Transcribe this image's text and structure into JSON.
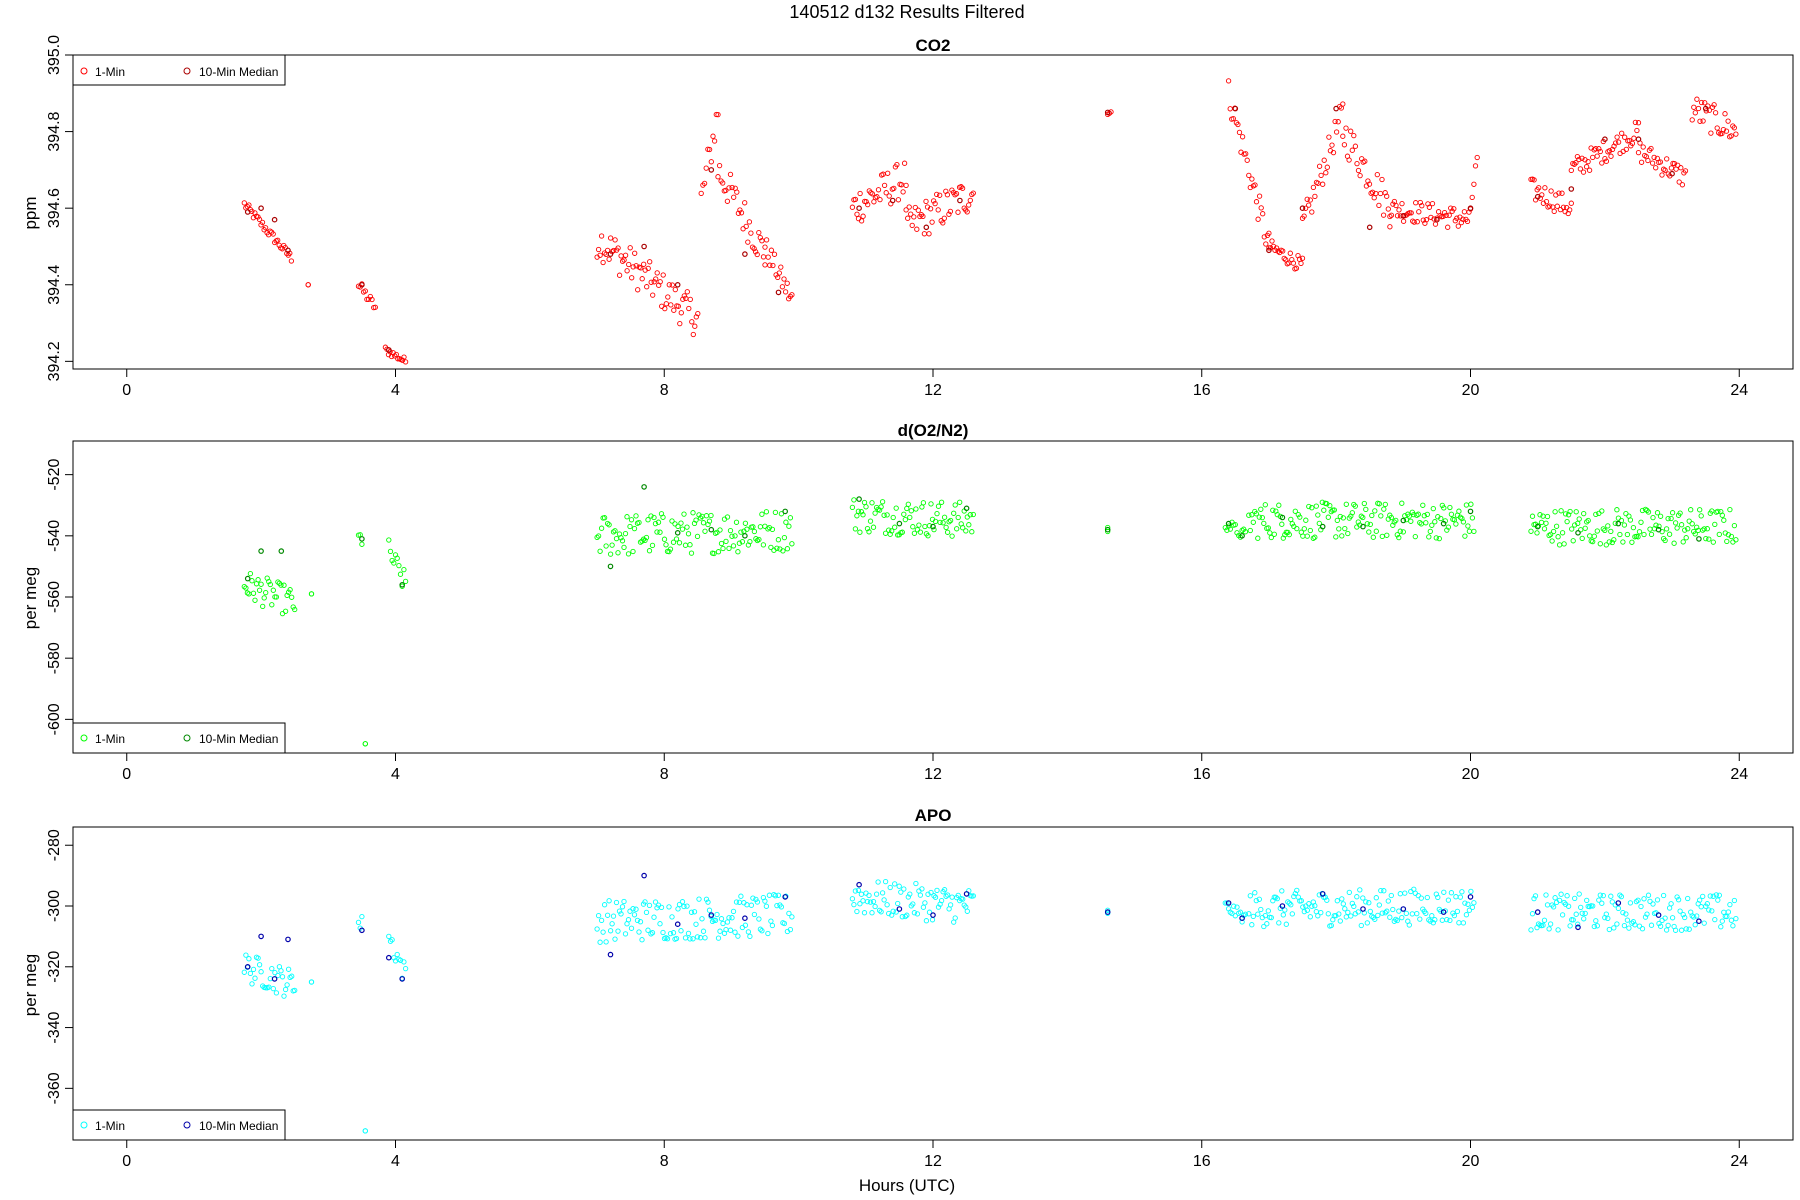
{
  "figure": {
    "title": "140512   d132   Results Filtered",
    "xlabel": "Hours (UTC)"
  },
  "chart_data": [
    {
      "type": "scatter",
      "title": "CO2",
      "xlabel": "Hours (UTC)",
      "ylabel": "ppm",
      "xlim": [
        -0.8,
        24.8
      ],
      "ylim": [
        394.18,
        395.0
      ],
      "xticks": [
        0,
        4,
        8,
        12,
        16,
        20,
        24
      ],
      "yticks": [
        394.2,
        394.4,
        394.6,
        394.8,
        395.0
      ],
      "ytick_labels": [
        "394.2",
        "394.4",
        "394.6",
        "394.8",
        "395.0"
      ],
      "grid": false,
      "legend": {
        "position": "top-left",
        "entries": [
          "1-Min",
          "10-Min Median"
        ]
      },
      "colors": {
        "one_min": "#ff0000",
        "median": "#aa0000"
      },
      "series": [
        {
          "name": "1-Min",
          "segments": [
            {
              "x": [
                1.75,
                2.45
              ],
              "y": [
                394.61,
                394.47
              ],
              "noise": 0.012
            },
            {
              "x": [
                2.7,
                2.7
              ],
              "y": [
                394.4,
                394.4
              ],
              "noise": 0.0
            },
            {
              "x": [
                3.45,
                3.7
              ],
              "y": [
                394.4,
                394.34
              ],
              "noise": 0.015
            },
            {
              "x": [
                3.85,
                4.15
              ],
              "y": [
                394.23,
                394.2
              ],
              "noise": 0.01
            },
            {
              "x": [
                7.0,
                8.5
              ],
              "y": [
                394.52,
                394.31
              ],
              "noise": 0.05
            },
            {
              "x": [
                8.55,
                8.8
              ],
              "y": [
                394.62,
                394.85
              ],
              "noise": 0.05
            },
            {
              "x": [
                8.8,
                9.5
              ],
              "y": [
                394.7,
                394.48
              ],
              "noise": 0.05
            },
            {
              "x": [
                9.5,
                9.9
              ],
              "y": [
                394.5,
                394.36
              ],
              "noise": 0.03
            },
            {
              "x": [
                10.8,
                11.6
              ],
              "y": [
                394.6,
                394.68
              ],
              "noise": 0.05
            },
            {
              "x": [
                11.6,
                12.6
              ],
              "y": [
                394.55,
                394.64
              ],
              "noise": 0.05
            },
            {
              "x": [
                14.6,
                14.65
              ],
              "y": [
                394.85,
                394.85
              ],
              "noise": 0.006
            },
            {
              "x": [
                16.4,
                17.0
              ],
              "y": [
                394.9,
                394.5
              ],
              "noise": 0.04
            },
            {
              "x": [
                17.0,
                17.5
              ],
              "y": [
                394.5,
                394.45
              ],
              "noise": 0.02
            },
            {
              "x": [
                17.5,
                18.1
              ],
              "y": [
                394.55,
                394.85
              ],
              "noise": 0.04
            },
            {
              "x": [
                18.1,
                18.8
              ],
              "y": [
                394.8,
                394.6
              ],
              "noise": 0.05
            },
            {
              "x": [
                18.8,
                20.0
              ],
              "y": [
                394.6,
                394.57
              ],
              "noise": 0.03
            },
            {
              "x": [
                20.0,
                20.1
              ],
              "y": [
                394.6,
                394.73
              ],
              "noise": 0.02
            },
            {
              "x": [
                20.9,
                21.5
              ],
              "y": [
                394.65,
                394.6
              ],
              "noise": 0.03
            },
            {
              "x": [
                21.5,
                22.5
              ],
              "y": [
                394.7,
                394.8
              ],
              "noise": 0.03
            },
            {
              "x": [
                22.5,
                23.2
              ],
              "y": [
                394.75,
                394.68
              ],
              "noise": 0.03
            },
            {
              "x": [
                23.3,
                23.95
              ],
              "y": [
                394.86,
                394.8
              ],
              "noise": 0.04
            }
          ]
        },
        {
          "name": "10-Min Median",
          "x": [
            1.8,
            2.0,
            2.2,
            2.4,
            3.5,
            3.9,
            7.2,
            7.7,
            8.2,
            8.7,
            9.2,
            9.7,
            10.9,
            11.4,
            11.9,
            12.4,
            14.6,
            16.5,
            17.0,
            17.5,
            18.0,
            18.5,
            19.0,
            19.5,
            20.0,
            21.0,
            21.5,
            22.0,
            22.5,
            23.0,
            23.5
          ],
          "y": [
            394.59,
            394.6,
            394.57,
            394.49,
            394.4,
            394.23,
            394.48,
            394.5,
            394.4,
            394.7,
            394.48,
            394.38,
            394.6,
            394.62,
            394.55,
            394.62,
            394.85,
            394.86,
            394.49,
            394.6,
            394.86,
            394.55,
            394.58,
            394.57,
            394.6,
            394.63,
            394.65,
            394.78,
            394.78,
            394.69,
            394.86
          ]
        }
      ]
    },
    {
      "type": "scatter",
      "title": "d(O2/N2)",
      "xlabel": "Hours (UTC)",
      "ylabel": "per meg",
      "xlim": [
        -0.8,
        24.8
      ],
      "ylim": [
        -611,
        -509
      ],
      "xticks": [
        0,
        4,
        8,
        12,
        16,
        20,
        24
      ],
      "yticks": [
        -600,
        -580,
        -560,
        -540,
        -520
      ],
      "ytick_labels": [
        "-600",
        "-580",
        "-560",
        "-540",
        "-520"
      ],
      "grid": false,
      "legend": {
        "position": "bottom-left",
        "entries": [
          "1-Min",
          "10-Min Median"
        ]
      },
      "colors": {
        "one_min": "#00ff00",
        "median": "#008800"
      },
      "series": [
        {
          "name": "1-Min",
          "segments": [
            {
              "x": [
                1.75,
                2.5
              ],
              "y": [
                -556,
                -562
              ],
              "noise": 5
            },
            {
              "x": [
                2.75,
                2.75
              ],
              "y": [
                -559,
                -559
              ],
              "noise": 0
            },
            {
              "x": [
                3.45,
                3.5
              ],
              "y": [
                -541,
                -541
              ],
              "noise": 3
            },
            {
              "x": [
                3.55,
                3.55
              ],
              "y": [
                -608,
                -608
              ],
              "noise": 0
            },
            {
              "x": [
                3.9,
                4.15
              ],
              "y": [
                -545,
                -556
              ],
              "noise": 4
            },
            {
              "x": [
                7.0,
                9.9
              ],
              "y": [
                -540,
                -538
              ],
              "noise": 7
            },
            {
              "x": [
                10.8,
                12.6
              ],
              "y": [
                -533,
                -535
              ],
              "noise": 6
            },
            {
              "x": [
                14.6,
                14.6
              ],
              "y": [
                -538,
                -538
              ],
              "noise": 1
            },
            {
              "x": [
                16.35,
                16.65
              ],
              "y": [
                -536,
                -540
              ],
              "noise": 2
            },
            {
              "x": [
                16.7,
                20.05
              ],
              "y": [
                -535,
                -535
              ],
              "noise": 6
            },
            {
              "x": [
                20.9,
                23.95
              ],
              "y": [
                -537,
                -537
              ],
              "noise": 6
            }
          ]
        },
        {
          "name": "10-Min Median",
          "x": [
            1.8,
            2.0,
            2.3,
            3.5,
            4.1,
            7.2,
            7.7,
            8.2,
            8.7,
            9.2,
            9.8,
            10.9,
            11.5,
            12.0,
            12.5,
            14.6,
            16.4,
            16.6,
            17.2,
            17.8,
            18.4,
            19.0,
            19.6,
            20.0,
            21.0,
            21.6,
            22.2,
            22.8,
            23.4
          ],
          "y": [
            -554,
            -545,
            -545,
            -541,
            -556,
            -550,
            -524,
            -539,
            -538,
            -540,
            -532,
            -528,
            -536,
            -537,
            -531,
            -538,
            -536,
            -540,
            -534,
            -537,
            -537,
            -535,
            -536,
            -532,
            -537,
            -539,
            -536,
            -538,
            -541
          ]
        }
      ]
    },
    {
      "type": "scatter",
      "title": "APO",
      "xlabel": "Hours (UTC)",
      "ylabel": "per meg",
      "xlim": [
        -0.8,
        24.8
      ],
      "ylim": [
        -377,
        -274
      ],
      "xticks": [
        0,
        4,
        8,
        12,
        16,
        20,
        24
      ],
      "yticks": [
        -360,
        -340,
        -320,
        -300,
        -280
      ],
      "ytick_labels": [
        "-360",
        "-340",
        "-320",
        "-300",
        "-280"
      ],
      "grid": false,
      "legend": {
        "position": "bottom-left",
        "entries": [
          "1-Min",
          "10-Min Median"
        ]
      },
      "colors": {
        "one_min": "#00ffff",
        "median": "#0000aa"
      },
      "series": [
        {
          "name": "1-Min",
          "segments": [
            {
              "x": [
                1.75,
                2.5
              ],
              "y": [
                -320,
                -326
              ],
              "noise": 5
            },
            {
              "x": [
                2.75,
                2.75
              ],
              "y": [
                -325,
                -325
              ],
              "noise": 0
            },
            {
              "x": [
                3.45,
                3.5
              ],
              "y": [
                -306,
                -306
              ],
              "noise": 3
            },
            {
              "x": [
                3.55,
                3.55
              ],
              "y": [
                -374,
                -374
              ],
              "noise": 0
            },
            {
              "x": [
                3.9,
                4.15
              ],
              "y": [
                -310,
                -323
              ],
              "noise": 4
            },
            {
              "x": [
                7.0,
                9.9
              ],
              "y": [
                -305,
                -303
              ],
              "noise": 7
            },
            {
              "x": [
                10.8,
                12.6
              ],
              "y": [
                -297,
                -300
              ],
              "noise": 6
            },
            {
              "x": [
                14.6,
                14.6
              ],
              "y": [
                -302,
                -302
              ],
              "noise": 1
            },
            {
              "x": [
                16.35,
                16.65
              ],
              "y": [
                -300,
                -304
              ],
              "noise": 2
            },
            {
              "x": [
                16.7,
                20.05
              ],
              "y": [
                -301,
                -300
              ],
              "noise": 6
            },
            {
              "x": [
                20.9,
                23.95
              ],
              "y": [
                -302,
                -302
              ],
              "noise": 6
            }
          ]
        },
        {
          "name": "10-Min Median",
          "x": [
            1.8,
            2.0,
            2.2,
            2.4,
            3.5,
            3.9,
            4.1,
            7.2,
            7.7,
            8.2,
            8.7,
            9.2,
            9.8,
            10.9,
            11.5,
            12.0,
            12.5,
            14.6,
            16.4,
            16.6,
            17.2,
            17.8,
            18.4,
            19.0,
            19.6,
            20.0,
            21.0,
            21.6,
            22.2,
            22.8,
            23.4
          ],
          "y": [
            -320,
            -310,
            -324,
            -311,
            -308,
            -317,
            -324,
            -316,
            -290,
            -306,
            -303,
            -304,
            -297,
            -293,
            -301,
            -303,
            -296,
            -302,
            -299,
            -304,
            -300,
            -296,
            -301,
            -301,
            -302,
            -297,
            -302,
            -307,
            -299,
            -303,
            -305
          ]
        }
      ]
    }
  ]
}
